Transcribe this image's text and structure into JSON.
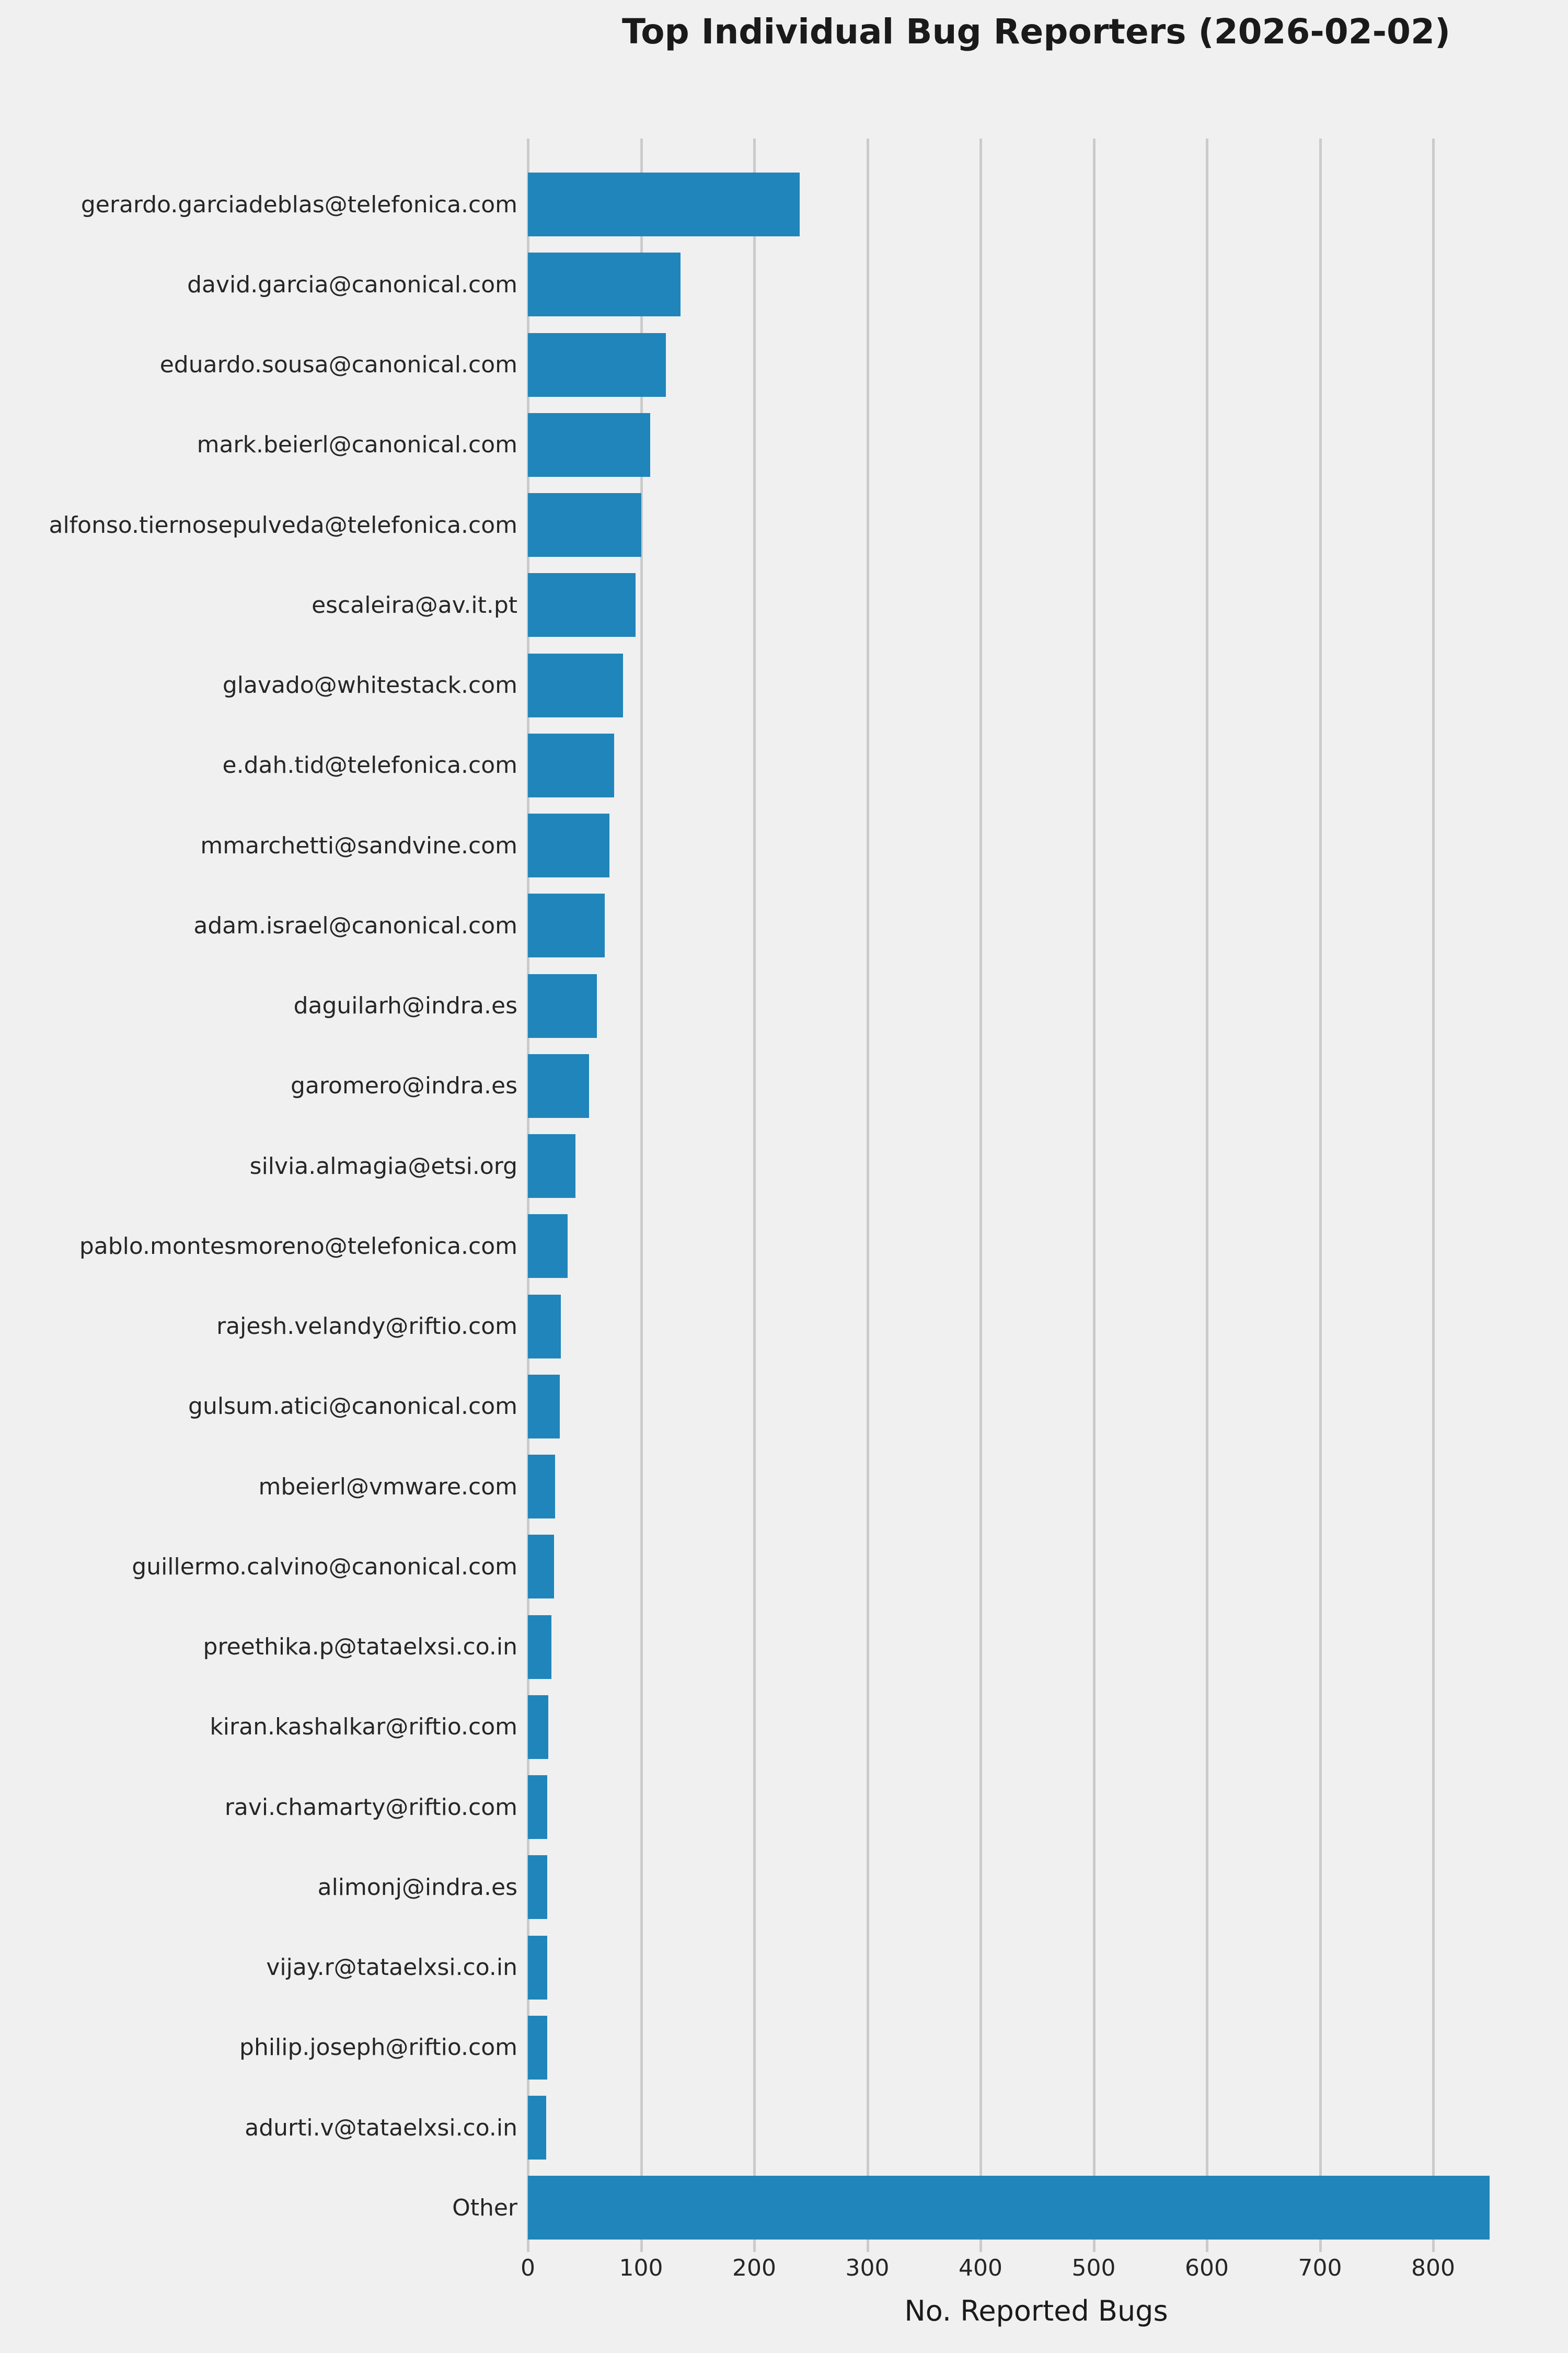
{
  "chart_data": {
    "type": "bar",
    "orientation": "horizontal",
    "title": "Top Individual Bug Reporters (2026-02-02)",
    "xlabel": "No. Reported Bugs",
    "ylabel": "",
    "categories": [
      "gerardo.garciadeblas@telefonica.com",
      "david.garcia@canonical.com",
      "eduardo.sousa@canonical.com",
      "mark.beierl@canonical.com",
      "alfonso.tiernosepulveda@telefonica.com",
      "escaleira@av.it.pt",
      "glavado@whitestack.com",
      "e.dah.tid@telefonica.com",
      "mmarchetti@sandvine.com",
      "adam.israel@canonical.com",
      "daguilarh@indra.es",
      "garomero@indra.es",
      "silvia.almagia@etsi.org",
      "pablo.montesmoreno@telefonica.com",
      "rajesh.velandy@riftio.com",
      "gulsum.atici@canonical.com",
      "mbeierl@vmware.com",
      "guillermo.calvino@canonical.com",
      "preethika.p@tataelxsi.co.in",
      "kiran.kashalkar@riftio.com",
      "ravi.chamarty@riftio.com",
      "alimonj@indra.es",
      "vijay.r@tataelxsi.co.in",
      "philip.joseph@riftio.com",
      "adurti.v@tataelxsi.co.in",
      "Other"
    ],
    "values": [
      240,
      135,
      122,
      108,
      100,
      95,
      84,
      76,
      72,
      68,
      61,
      54,
      42,
      35,
      29,
      28,
      24,
      23,
      21,
      18,
      17,
      17,
      17,
      17,
      16,
      850
    ],
    "xticks": [
      0,
      100,
      200,
      300,
      400,
      500,
      600,
      700,
      800
    ],
    "xlim": [
      0,
      898
    ],
    "grid": true,
    "legend": "none",
    "bar_color": "#2085ba",
    "background_color": "#f0f0f0",
    "grid_color": "#cbcbcb",
    "text_color": "#262626"
  }
}
